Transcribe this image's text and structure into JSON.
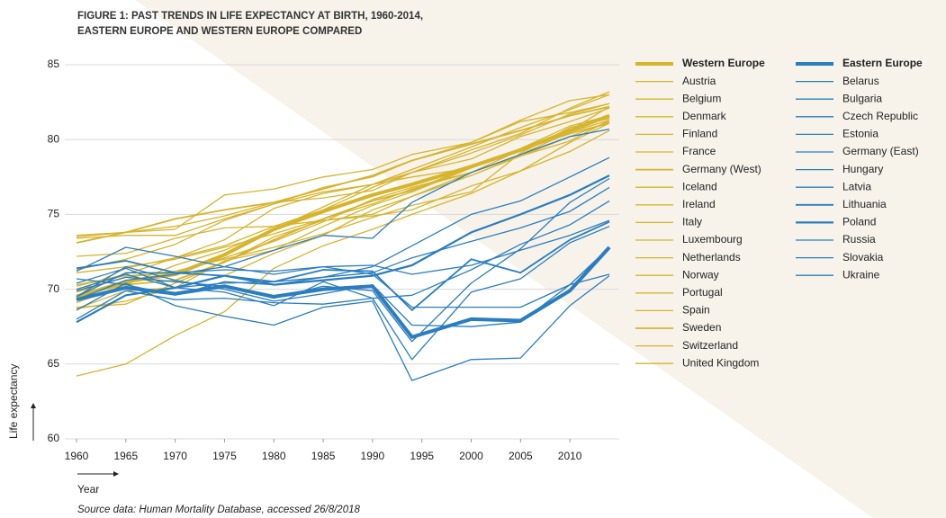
{
  "chart_data": {
    "type": "line",
    "title": [
      "FIGURE 1: PAST TRENDS IN LIFE EXPECTANCY AT BIRTH, 1960-2014,",
      "EASTERN EUROPE AND WESTERN EUROPE COMPARED"
    ],
    "x_label": "Year",
    "y_label": "Life expectancy",
    "source": "Source data: Human Mortality Database, accessed 26/8/2018",
    "x": [
      1960,
      1965,
      1970,
      1975,
      1980,
      1985,
      1990,
      1994,
      2000,
      2005,
      2010,
      2014
    ],
    "xlim": [
      1960,
      2014
    ],
    "xticks": [
      1960,
      1965,
      1970,
      1975,
      1980,
      1985,
      1990,
      1995,
      2000,
      2005,
      2010
    ],
    "ylim": [
      60,
      85
    ],
    "yticks": [
      60,
      65,
      70,
      75,
      80,
      85
    ],
    "grid": true,
    "series": [
      {
        "name": "Western Europe",
        "color": "#d6b42c",
        "width": 4,
        "values": [
          69.5,
          70.5,
          71,
          72.3,
          74,
          75.2,
          76.3,
          77,
          78.2,
          79.3,
          80.6,
          81.6
        ]
      },
      {
        "name": "Austria",
        "color": "#d6b42c",
        "width": 1.3,
        "values": [
          68.7,
          69.9,
          70.1,
          71.9,
          72.6,
          74.2,
          75.6,
          76.5,
          78.1,
          79.3,
          80.7,
          81.5
        ]
      },
      {
        "name": "Belgium",
        "color": "#d6b42c",
        "width": 1.3,
        "values": [
          70.3,
          70.9,
          71.1,
          72.1,
          73.2,
          74.5,
          76,
          76.8,
          77.8,
          78.9,
          80.2,
          81.2
        ]
      },
      {
        "name": "Denmark",
        "color": "#d6b42c",
        "width": 1.3,
        "values": [
          72.2,
          72.4,
          73.4,
          74.1,
          74.2,
          74.6,
          74.9,
          75.3,
          76.9,
          77.9,
          79.2,
          80.6
        ]
      },
      {
        "name": "Finland",
        "color": "#d6b42c",
        "width": 1.3,
        "values": [
          68.8,
          69,
          70.4,
          71.8,
          73.5,
          74.6,
          75,
          76.2,
          77.6,
          78.9,
          79.9,
          81.3
        ]
      },
      {
        "name": "France",
        "color": "#d6b42c",
        "width": 1.3,
        "values": [
          70.2,
          71,
          72.1,
          72.9,
          74.2,
          75.3,
          76.8,
          77.8,
          79.1,
          80.3,
          81.7,
          82.4
        ]
      },
      {
        "name": "Germany (West)",
        "color": "#d6b42c",
        "width": 1.8,
        "values": [
          69.6,
          70.3,
          70.6,
          71.8,
          73.3,
          74.7,
          75.9,
          76.6,
          78.2,
          79.3,
          80.4,
          81.1
        ]
      },
      {
        "name": "Iceland",
        "color": "#d6b42c",
        "width": 1.3,
        "values": [
          73.5,
          73.8,
          74,
          76.3,
          76.7,
          77.5,
          78,
          79,
          79.8,
          81.2,
          81.8,
          82.4
        ]
      },
      {
        "name": "Ireland",
        "color": "#d6b42c",
        "width": 1.3,
        "values": [
          69.8,
          70.8,
          71.2,
          72,
          72.8,
          73.7,
          74.8,
          75.6,
          76.5,
          79.1,
          80.8,
          81.4
        ]
      },
      {
        "name": "Italy",
        "color": "#d6b42c",
        "width": 1.3,
        "values": [
          69.1,
          70.3,
          71.6,
          72.6,
          74,
          75.5,
          77,
          78,
          79.5,
          80.8,
          82,
          83
        ]
      },
      {
        "name": "Luxembourg",
        "color": "#d6b42c",
        "width": 1.3,
        "values": [
          68.7,
          69.2,
          70.1,
          70.9,
          72.4,
          73.6,
          75.3,
          76.2,
          77.8,
          79.3,
          80.6,
          82.2
        ]
      },
      {
        "name": "Netherlands",
        "color": "#d6b42c",
        "width": 1.3,
        "values": [
          73.4,
          73.6,
          73.6,
          74.7,
          75.7,
          76.5,
          77,
          77.5,
          78.1,
          79.4,
          80.9,
          81.6
        ]
      },
      {
        "name": "Norway",
        "color": "#d6b42c",
        "width": 1.3,
        "values": [
          73.6,
          73.8,
          74.2,
          74.9,
          75.8,
          76.1,
          76.6,
          77.8,
          78.7,
          80.2,
          81.2,
          82.1
        ]
      },
      {
        "name": "Portugal",
        "color": "#d6b42c",
        "width": 1.3,
        "values": [
          64.2,
          65,
          66.9,
          68.5,
          71.4,
          72.9,
          74,
          75,
          76.4,
          77.9,
          79.8,
          81.1
        ]
      },
      {
        "name": "Spain",
        "color": "#d6b42c",
        "width": 1.3,
        "values": [
          69.8,
          71.4,
          72.1,
          73.3,
          75.4,
          76.4,
          77,
          77.8,
          79.3,
          80.4,
          82.1,
          83.2
        ]
      },
      {
        "name": "Sweden",
        "color": "#d6b42c",
        "width": 1.8,
        "values": [
          73.1,
          73.8,
          74.7,
          75.3,
          75.8,
          76.7,
          77.6,
          78.6,
          79.7,
          80.6,
          81.6,
          82.2
        ]
      },
      {
        "name": "Switzerland",
        "color": "#d6b42c",
        "width": 1.3,
        "values": [
          71.3,
          72,
          73,
          74.6,
          75.7,
          76.8,
          77.5,
          78.6,
          79.8,
          81.3,
          82.6,
          83
        ]
      },
      {
        "name": "United Kingdom",
        "color": "#d6b42c",
        "width": 1.3,
        "values": [
          71.1,
          71.5,
          72,
          72.8,
          73.7,
          74.7,
          75.7,
          76.7,
          77.8,
          79,
          80.5,
          81.3
        ]
      },
      {
        "name": "Eastern Europe",
        "color": "#2a7dbf",
        "width": 4,
        "values": [
          69.3,
          70.1,
          69.7,
          70.2,
          69.5,
          70,
          70.2,
          66.8,
          68,
          67.9,
          69.9,
          72.8
        ]
      },
      {
        "name": "Belarus",
        "color": "#2a7dbf",
        "width": 1.3,
        "values": [
          71.2,
          72.8,
          72.2,
          71.5,
          71,
          71.5,
          71,
          68.8,
          68.8,
          68.8,
          70.3,
          72.8
        ]
      },
      {
        "name": "Bulgaria",
        "color": "#2a7dbf",
        "width": 1.3,
        "values": [
          69.5,
          71.1,
          71.1,
          71.3,
          71.2,
          71.5,
          71.6,
          71,
          71.6,
          72.6,
          73.6,
          74.6
        ]
      },
      {
        "name": "Czech Republic",
        "color": "#2a7dbf",
        "width": 1.3,
        "values": [
          70.7,
          70.3,
          69.6,
          70.5,
          70.3,
          70.8,
          71.5,
          72.9,
          75,
          75.9,
          77.5,
          78.8
        ]
      },
      {
        "name": "Estonia",
        "color": "#2a7dbf",
        "width": 1.3,
        "values": [
          69.9,
          70.8,
          70.5,
          70.2,
          69.4,
          70.2,
          69.9,
          66.5,
          70.4,
          72.7,
          75.8,
          77.4
        ]
      },
      {
        "name": "Germany (East)",
        "color": "#2a7dbf",
        "width": 1.3,
        "values": [
          69.3,
          70.6,
          71,
          71.5,
          72.6,
          73.6,
          73.4,
          75.8,
          77.8,
          79,
          80.2,
          80.7
        ]
      },
      {
        "name": "Hungary",
        "color": "#2a7dbf",
        "width": 1.3,
        "values": [
          68,
          69.9,
          69.3,
          69.4,
          69.1,
          69,
          69.4,
          69.6,
          71.3,
          73,
          74.3,
          75.9
        ]
      },
      {
        "name": "Latvia",
        "color": "#2a7dbf",
        "width": 1.3,
        "values": [
          70,
          71,
          70.1,
          69.8,
          68.9,
          70.5,
          69.4,
          65.3,
          69.8,
          70.7,
          73.1,
          74.2
        ]
      },
      {
        "name": "Lithuania",
        "color": "#2a7dbf",
        "width": 1.8,
        "values": [
          71.4,
          71.9,
          71.1,
          70.9,
          70.5,
          71.3,
          71.2,
          68.6,
          72,
          71.1,
          73.3,
          74.5
        ]
      },
      {
        "name": "Poland",
        "color": "#2a7dbf",
        "width": 2.2,
        "values": [
          67.8,
          69.6,
          70.1,
          70.9,
          70.3,
          70.6,
          70.9,
          71.6,
          73.8,
          75,
          76.3,
          77.6
        ]
      },
      {
        "name": "Russia",
        "color": "#2a7dbf",
        "width": 1.3,
        "values": [
          68.6,
          70.4,
          68.9,
          68.2,
          67.6,
          68.8,
          69.2,
          63.9,
          65.3,
          65.4,
          68.9,
          70.9
        ]
      },
      {
        "name": "Slovakia",
        "color": "#2a7dbf",
        "width": 1.3,
        "values": [
          70.4,
          71.4,
          70.1,
          70.4,
          70.5,
          70.8,
          71.1,
          72.1,
          73.2,
          74.1,
          75.2,
          76.8
        ]
      },
      {
        "name": "Ukraine",
        "color": "#2a7dbf",
        "width": 1.3,
        "values": [
          69.5,
          71.5,
          70.6,
          70,
          69.2,
          69.7,
          70.3,
          67.6,
          67.5,
          67.8,
          70.3,
          71
        ]
      }
    ]
  }
}
